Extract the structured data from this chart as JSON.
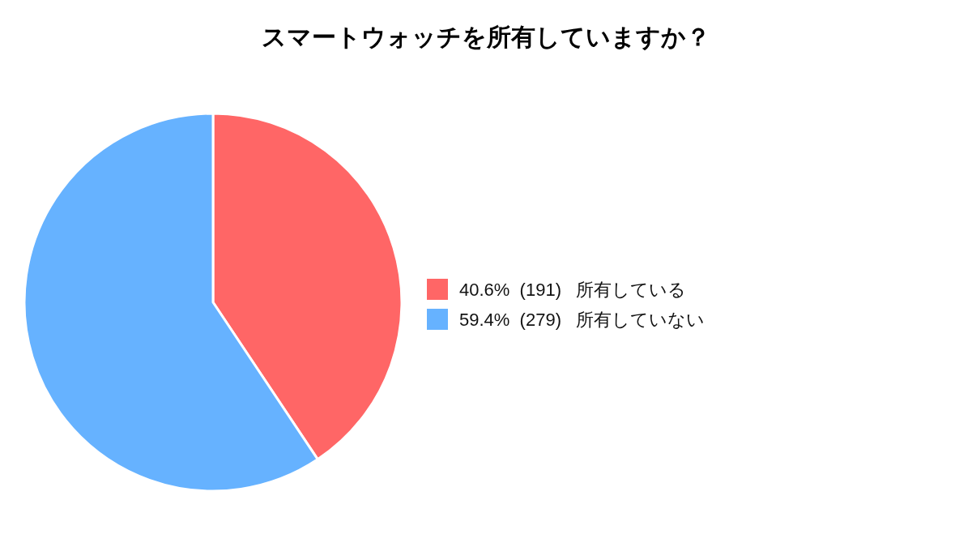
{
  "chart_data": {
    "type": "pie",
    "title": "スマートウォッチを所有していますか？",
    "categories": [
      "40.6%  (191)   所有している",
      "59.4%  (279)   所有していない"
    ],
    "values": [
      191,
      279
    ],
    "colors": [
      "#ff6666",
      "#66b2ff"
    ],
    "legend": "right"
  }
}
